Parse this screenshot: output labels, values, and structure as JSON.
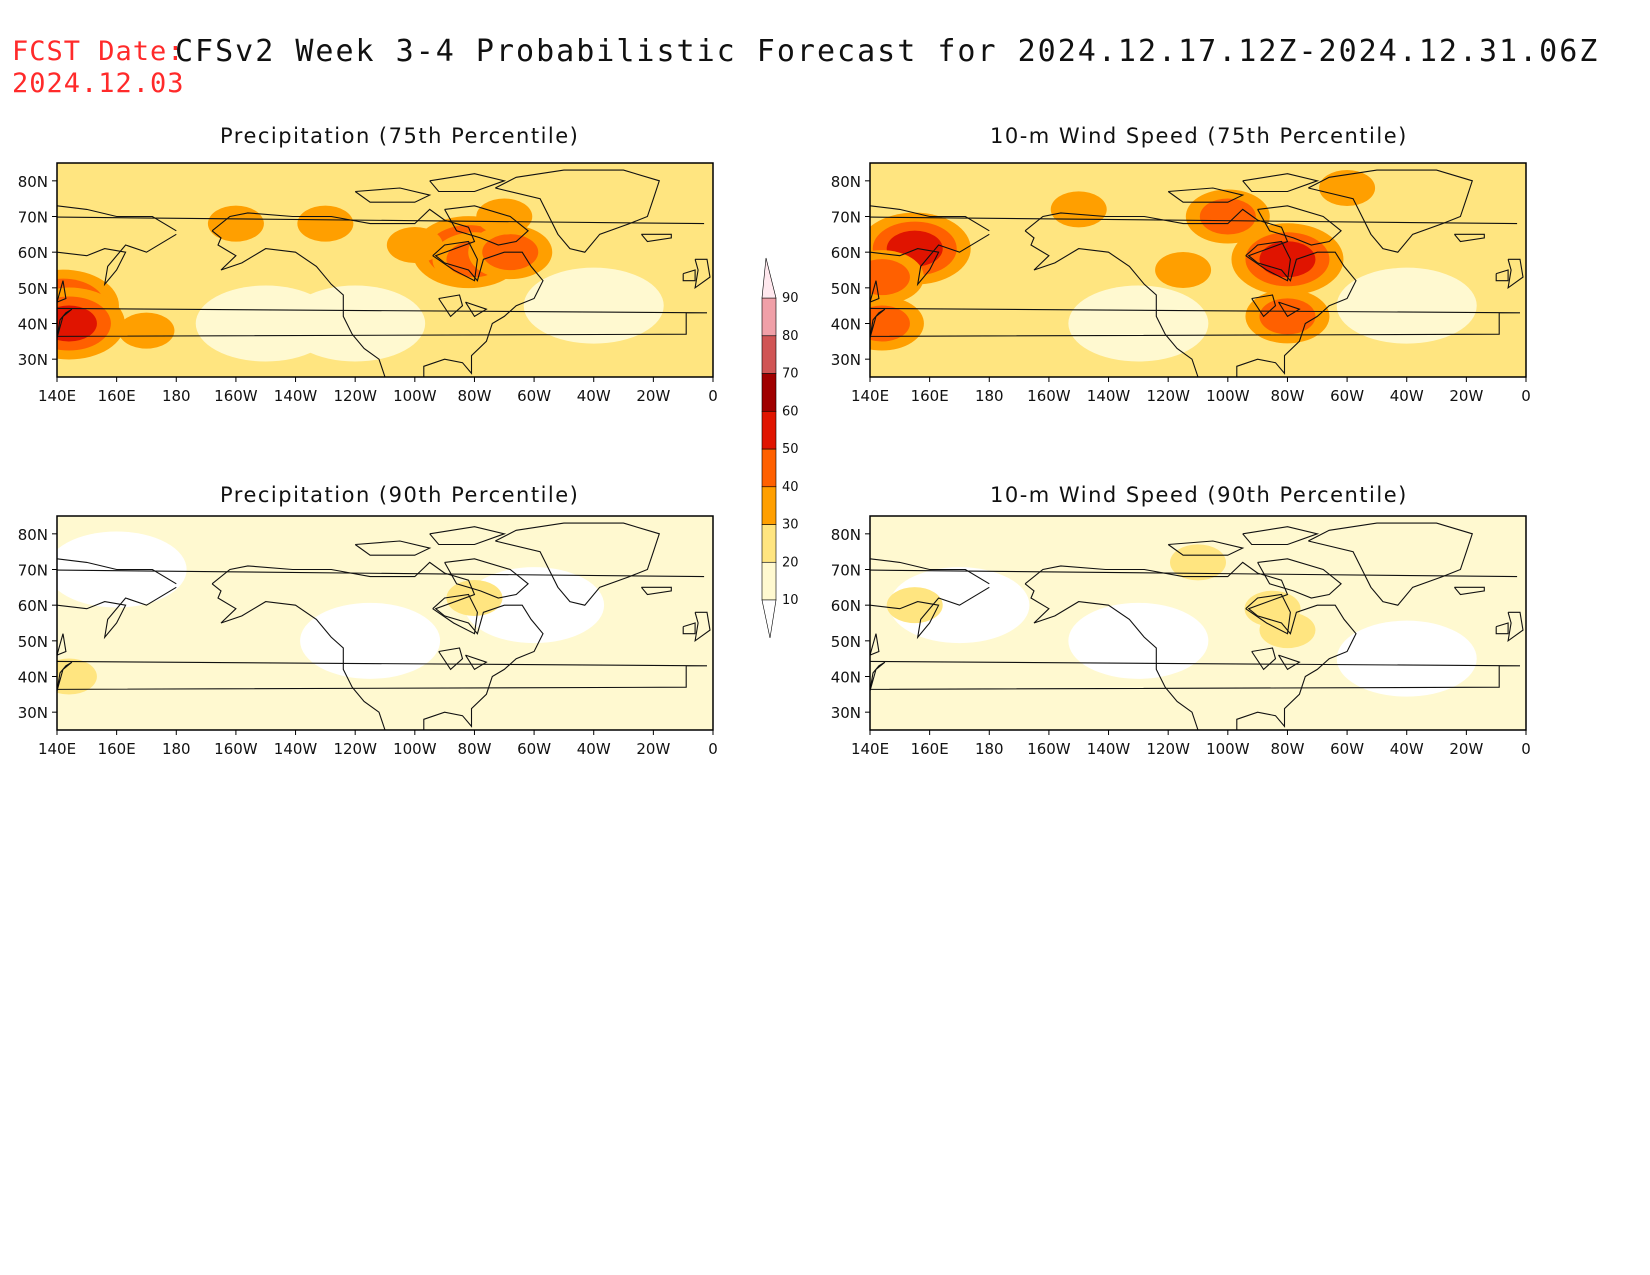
{
  "header": {
    "fcst_label": "FCST Date:",
    "fcst_date": "2024.12.03",
    "title": "CFSv2 Week 3-4 Probabilistic Forecast for 2024.12.17.12Z-2024.12.31.06Z"
  },
  "axes": {
    "lon_labels": [
      "140E",
      "160E",
      "180",
      "160W",
      "140W",
      "120W",
      "100W",
      "80W",
      "60W",
      "40W",
      "20W",
      "0"
    ],
    "lat_labels": [
      "80N",
      "70N",
      "60N",
      "50N",
      "40N",
      "30N"
    ]
  },
  "colorbar": {
    "levels": [
      10,
      20,
      30,
      40,
      50,
      60,
      70,
      80,
      90
    ],
    "colors": [
      "#fff9d0",
      "#ffe580",
      "#ff9f00",
      "#ff6000",
      "#e01400",
      "#a00000",
      "#d05555",
      "#f0a0a8",
      "#ffe8ee"
    ]
  },
  "panels": [
    {
      "id": "precip-75",
      "title": "Precipitation (75th Percentile)",
      "base_level": 2,
      "blobs": [
        {
          "lon": -82,
          "lat": 60,
          "level": 5
        },
        {
          "lon": -80,
          "lat": 58,
          "level": 4
        },
        {
          "lon": -68,
          "lat": 60,
          "level": 4
        },
        {
          "lon": 142,
          "lat": 45,
          "level": 5
        },
        {
          "lon": 144,
          "lat": 40,
          "level": 5
        },
        {
          "lon": -130,
          "lat": 68,
          "level": 3
        },
        {
          "lon": -160,
          "lat": 68,
          "level": 3
        },
        {
          "lon": 170,
          "lat": 38,
          "level": 3
        },
        {
          "lon": -70,
          "lat": 70,
          "level": 3
        },
        {
          "lon": -100,
          "lat": 62,
          "level": 3
        }
      ],
      "light_areas": [
        {
          "lon": -120,
          "lat": 40
        },
        {
          "lon": -40,
          "lat": 45
        },
        {
          "lon": -150,
          "lat": 40
        }
      ]
    },
    {
      "id": "wind-75",
      "title": "10-m Wind Speed (75th Percentile)",
      "base_level": 2,
      "blobs": [
        {
          "lon": -80,
          "lat": 58,
          "level": 5
        },
        {
          "lon": 155,
          "lat": 61,
          "level": 5
        },
        {
          "lon": 144,
          "lat": 40,
          "level": 4
        },
        {
          "lon": 144,
          "lat": 53,
          "level": 4
        },
        {
          "lon": -150,
          "lat": 72,
          "level": 3
        },
        {
          "lon": -100,
          "lat": 70,
          "level": 4
        },
        {
          "lon": -80,
          "lat": 42,
          "level": 4
        },
        {
          "lon": -115,
          "lat": 55,
          "level": 3
        },
        {
          "lon": -60,
          "lat": 78,
          "level": 3
        }
      ],
      "light_areas": [
        {
          "lon": -40,
          "lat": 45
        },
        {
          "lon": -130,
          "lat": 40
        }
      ]
    },
    {
      "id": "precip-90",
      "title": "Precipitation (90th Percentile)",
      "base_level": 1,
      "blobs": [
        {
          "lon": -80,
          "lat": 62,
          "level": 2
        },
        {
          "lon": 144,
          "lat": 40,
          "level": 2
        }
      ],
      "light_areas": [
        {
          "lon": -60,
          "lat": 60
        },
        {
          "lon": -115,
          "lat": 50
        },
        {
          "lon": 160,
          "lat": 70
        }
      ]
    },
    {
      "id": "wind-90",
      "title": "10-m Wind Speed (90th Percentile)",
      "base_level": 1,
      "blobs": [
        {
          "lon": -85,
          "lat": 59,
          "level": 2
        },
        {
          "lon": -80,
          "lat": 53,
          "level": 2
        },
        {
          "lon": 155,
          "lat": 60,
          "level": 2
        },
        {
          "lon": -110,
          "lat": 72,
          "level": 2
        }
      ],
      "light_areas": [
        {
          "lon": -130,
          "lat": 50
        },
        {
          "lon": -40,
          "lat": 45
        },
        {
          "lon": 170,
          "lat": 60
        }
      ]
    }
  ]
}
